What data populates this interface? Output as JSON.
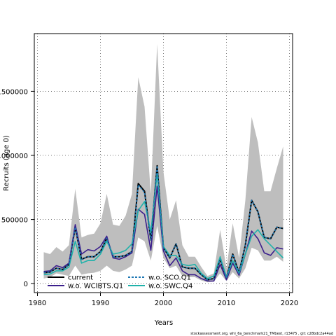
{
  "chart_data": {
    "type": "line",
    "title": "",
    "xlabel": "Years",
    "ylabel": "Recruits (age 0)",
    "xlim": [
      1979.5,
      2020.5
    ],
    "ylim": [
      -70000,
      1950000
    ],
    "grid": true,
    "legend_position": "bottom-left",
    "x_ticks": [
      1980,
      1990,
      2000,
      2010,
      2020
    ],
    "x_tick_labels": [
      "1980",
      "1990",
      "2000",
      "2010",
      "2020"
    ],
    "y_ticks": [
      0,
      500000,
      1000000,
      1500000
    ],
    "y_tick_labels": [
      "0",
      "500000",
      "1000000",
      "1500000"
    ],
    "years": [
      1981,
      1982,
      1983,
      1984,
      1985,
      1986,
      1987,
      1988,
      1989,
      1990,
      1991,
      1992,
      1993,
      1994,
      1995,
      1996,
      1997,
      1998,
      1999,
      2000,
      2001,
      2002,
      2003,
      2004,
      2005,
      2006,
      2007,
      2008,
      2009,
      2010,
      2011,
      2012,
      2013,
      2014,
      2015,
      2016,
      2017,
      2018,
      2019
    ],
    "band": {
      "color": "#bebebe",
      "upper": [
        245000,
        230000,
        285000,
        250000,
        300000,
        740000,
        360000,
        380000,
        390000,
        470000,
        700000,
        460000,
        450000,
        530000,
        700000,
        1610000,
        1380000,
        700000,
        1870000,
        870000,
        500000,
        650000,
        300000,
        210000,
        210000,
        130000,
        60000,
        80000,
        420000,
        120000,
        470000,
        200000,
        650000,
        1300000,
        1100000,
        720000,
        720000,
        900000,
        1070000
      ],
      "lower": [
        40000,
        50000,
        80000,
        70000,
        60000,
        140000,
        70000,
        80000,
        85000,
        100000,
        140000,
        100000,
        90000,
        110000,
        140000,
        360000,
        330000,
        180000,
        450000,
        200000,
        120000,
        140000,
        60000,
        50000,
        50000,
        25000,
        10000,
        15000,
        80000,
        20000,
        90000,
        40000,
        120000,
        280000,
        260000,
        180000,
        180000,
        210000,
        170000
      ]
    },
    "series": [
      {
        "name": "current",
        "color": "#000000",
        "dash": "solid",
        "values": [
          85000,
          90000,
          120000,
          110000,
          150000,
          440000,
          190000,
          210000,
          210000,
          250000,
          355000,
          210000,
          210000,
          220000,
          250000,
          780000,
          720000,
          340000,
          920000,
          280000,
          200000,
          310000,
          130000,
          120000,
          120000,
          70000,
          30000,
          40000,
          190000,
          45000,
          230000,
          85000,
          300000,
          650000,
          560000,
          360000,
          350000,
          440000,
          430000
        ]
      },
      {
        "name": "w.o. WCIBTS.Q1",
        "color": "#3b1f8c",
        "dash": "solid",
        "values": [
          95000,
          100000,
          140000,
          125000,
          160000,
          460000,
          230000,
          265000,
          255000,
          290000,
          370000,
          200000,
          190000,
          210000,
          240000,
          580000,
          540000,
          260000,
          760000,
          255000,
          140000,
          200000,
          100000,
          70000,
          70000,
          40000,
          20000,
          20000,
          150000,
          30000,
          160000,
          65000,
          230000,
          410000,
          350000,
          240000,
          220000,
          280000,
          270000
        ]
      },
      {
        "name": "w.o. SCO.Q1",
        "color": "#1f78b4",
        "dash": "dashed",
        "values": [
          85000,
          90000,
          120000,
          110000,
          150000,
          440000,
          190000,
          210000,
          210000,
          250000,
          355000,
          210000,
          210000,
          220000,
          250000,
          770000,
          710000,
          340000,
          920000,
          280000,
          200000,
          310000,
          130000,
          120000,
          120000,
          70000,
          30000,
          40000,
          190000,
          45000,
          230000,
          85000,
          300000,
          650000,
          560000,
          360000,
          350000,
          440000,
          430000
        ]
      },
      {
        "name": "w.o. SWC.Q4",
        "color": "#20b2aa",
        "dash": "solid",
        "values": [
          70000,
          75000,
          100000,
          100000,
          130000,
          330000,
          160000,
          180000,
          180000,
          230000,
          330000,
          230000,
          240000,
          260000,
          310000,
          570000,
          640000,
          400000,
          860000,
          290000,
          220000,
          220000,
          150000,
          140000,
          150000,
          80000,
          40000,
          60000,
          210000,
          50000,
          180000,
          80000,
          230000,
          370000,
          420000,
          350000,
          300000,
          250000,
          200000
        ]
      }
    ]
  },
  "footer": "stockassessment.org, whi_6a_benchmark21_TMbest, r13475 , git: c28bdc2a44ad"
}
